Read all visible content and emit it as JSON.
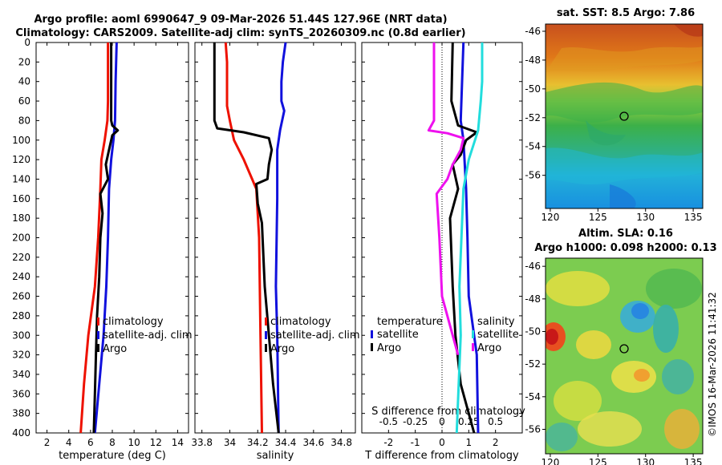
{
  "header": {
    "title_line1": "Argo profile: aoml 6990647_9 09-Mar-2026 51.44S 127.96E (NRT data)",
    "title_line2": "Climatology: CARS2009. Satellite-adj clim: synTS_20260309.nc (0.8d earlier)"
  },
  "side": {
    "sst_title": "sat. SST: 8.5 Argo: 7.86",
    "sla_title1": "Altim. SLA: 0.16",
    "sla_title2": "Argo h1000: 0.098 h2000: 0.13",
    "watermark": "©IMOS 16-Mar-2026 11:41:32"
  },
  "colors": {
    "climatology": "#ee1100",
    "satellite": "#1111dd",
    "argo": "#000000",
    "sal_diff": "#22dddd",
    "temp_diff": "#ee11ee"
  },
  "chart_data": [
    {
      "type": "line",
      "name": "temperature",
      "xlabel": "temperature (deg C)",
      "ylabel": "",
      "xlim": [
        1,
        15
      ],
      "ylim": [
        400,
        0
      ],
      "xticks": [
        "2",
        "4",
        "6",
        "8",
        "10",
        "12",
        "14"
      ],
      "xtick_values": [
        2,
        4,
        6,
        8,
        10,
        12,
        14
      ],
      "yticks": [
        "0",
        "20",
        "40",
        "60",
        "80",
        "100",
        "120",
        "140",
        "160",
        "180",
        "200",
        "220",
        "240",
        "260",
        "280",
        "300",
        "320",
        "340",
        "360",
        "380",
        "400"
      ],
      "ytick_values": [
        0,
        20,
        40,
        60,
        80,
        100,
        120,
        140,
        160,
        180,
        200,
        220,
        240,
        260,
        280,
        300,
        320,
        340,
        360,
        380,
        400
      ],
      "legend": [
        "climatology",
        "satellite-adj. clim",
        "Argo"
      ],
      "series": [
        {
          "name": "climatology",
          "color_key": "climatology",
          "points": [
            [
              7.6,
              0
            ],
            [
              7.6,
              60
            ],
            [
              7.55,
              80
            ],
            [
              7.3,
              100
            ],
            [
              7.0,
              120
            ],
            [
              6.9,
              150
            ],
            [
              6.7,
              200
            ],
            [
              6.4,
              250
            ],
            [
              5.8,
              300
            ],
            [
              5.4,
              350
            ],
            [
              5.1,
              400
            ]
          ]
        },
        {
          "name": "satellite-adj. clim",
          "color_key": "satellite",
          "points": [
            [
              8.4,
              0
            ],
            [
              8.3,
              40
            ],
            [
              8.25,
              80
            ],
            [
              8.1,
              100
            ],
            [
              7.9,
              120
            ],
            [
              7.7,
              150
            ],
            [
              7.6,
              200
            ],
            [
              7.45,
              250
            ],
            [
              7.2,
              300
            ],
            [
              6.8,
              350
            ],
            [
              6.4,
              400
            ]
          ]
        },
        {
          "name": "Argo",
          "color_key": "argo",
          "points": [
            [
              7.9,
              0
            ],
            [
              7.9,
              80
            ],
            [
              8.0,
              85
            ],
            [
              8.5,
              90
            ],
            [
              8.0,
              95
            ],
            [
              7.7,
              110
            ],
            [
              7.4,
              125
            ],
            [
              7.6,
              140
            ],
            [
              6.9,
              155
            ],
            [
              7.1,
              175
            ],
            [
              6.9,
              200
            ],
            [
              6.8,
              240
            ],
            [
              6.6,
              280
            ],
            [
              6.5,
              320
            ],
            [
              6.4,
              360
            ],
            [
              6.3,
              400
            ]
          ]
        }
      ]
    },
    {
      "type": "line",
      "name": "salinity",
      "xlabel": "salinity",
      "ylabel": "",
      "xlim": [
        33.75,
        34.9
      ],
      "ylim": [
        400,
        0
      ],
      "xticks": [
        "33.8",
        "34",
        "34.2",
        "34.4",
        "34.6",
        "34.8"
      ],
      "xtick_values": [
        33.8,
        34.0,
        34.2,
        34.4,
        34.6,
        34.8
      ],
      "legend": [
        "climatology",
        "satellite-adj. clim",
        "Argo"
      ],
      "series": [
        {
          "name": "climatology",
          "color_key": "climatology",
          "points": [
            [
              33.97,
              0
            ],
            [
              33.98,
              20
            ],
            [
              33.98,
              50
            ],
            [
              33.98,
              65
            ],
            [
              34.0,
              80
            ],
            [
              34.03,
              100
            ],
            [
              34.1,
              120
            ],
            [
              34.16,
              140
            ],
            [
              34.19,
              150
            ],
            [
              34.21,
              200
            ],
            [
              34.22,
              300
            ],
            [
              34.23,
              400
            ]
          ]
        },
        {
          "name": "satellite-adj. clim",
          "color_key": "satellite",
          "points": [
            [
              34.4,
              0
            ],
            [
              34.38,
              20
            ],
            [
              34.37,
              40
            ],
            [
              34.37,
              60
            ],
            [
              34.39,
              70
            ],
            [
              34.36,
              90
            ],
            [
              34.34,
              110
            ],
            [
              34.34,
              160
            ],
            [
              34.33,
              250
            ],
            [
              34.34,
              300
            ],
            [
              34.35,
              400
            ]
          ]
        },
        {
          "name": "Argo",
          "color_key": "argo",
          "points": [
            [
              33.89,
              0
            ],
            [
              33.89,
              80
            ],
            [
              33.91,
              88
            ],
            [
              34.1,
              92
            ],
            [
              34.28,
              98
            ],
            [
              34.3,
              110
            ],
            [
              34.28,
              125
            ],
            [
              34.27,
              140
            ],
            [
              34.19,
              145
            ],
            [
              34.2,
              165
            ],
            [
              34.23,
              185
            ],
            [
              34.25,
              250
            ],
            [
              34.28,
              300
            ],
            [
              34.31,
              350
            ],
            [
              34.35,
              400
            ]
          ]
        }
      ]
    },
    {
      "type": "line",
      "name": "T difference",
      "xlabel": "T difference from climatology",
      "top_xlabel": "S difference from climatology",
      "xlim": [
        -3,
        3
      ],
      "ylim": [
        400,
        0
      ],
      "xticks": [
        "-2",
        "-1",
        "0",
        "1",
        "2"
      ],
      "xtick_values": [
        -2,
        -1,
        0,
        1,
        2
      ],
      "top_ticks": [
        "-0.5",
        "-0.25",
        "0",
        "0.25",
        "0.5"
      ],
      "top_tick_values": [
        -0.5,
        -0.25,
        0,
        0.25,
        0.5
      ],
      "legend_left_title": "temperature",
      "legend_right_title": "salinity",
      "legend_left": [
        "satellite",
        "Argo"
      ],
      "legend_right": [
        "satellite",
        "Argo"
      ],
      "series": [
        {
          "name": "T satellite",
          "color_key": "satellite",
          "points": [
            [
              0.8,
              0
            ],
            [
              0.7,
              80
            ],
            [
              0.8,
              100
            ],
            [
              0.9,
              150
            ],
            [
              0.95,
              200
            ],
            [
              1.0,
              260
            ],
            [
              1.3,
              320
            ],
            [
              1.35,
              400
            ]
          ]
        },
        {
          "name": "T Argo",
          "color_key": "argo",
          "points": [
            [
              0.4,
              0
            ],
            [
              0.35,
              60
            ],
            [
              0.6,
              85
            ],
            [
              1.3,
              92
            ],
            [
              0.9,
              100
            ],
            [
              0.7,
              115
            ],
            [
              0.4,
              125
            ],
            [
              0.6,
              150
            ],
            [
              0.3,
              180
            ],
            [
              0.4,
              250
            ],
            [
              0.5,
              300
            ],
            [
              0.7,
              350
            ],
            [
              1.2,
              400
            ]
          ]
        },
        {
          "name": "S satellite",
          "color_key": "sal_diff",
          "points": [
            [
              1.5,
              0
            ],
            [
              1.5,
              40
            ],
            [
              1.45,
              60
            ],
            [
              1.35,
              90
            ],
            [
              1.0,
              120
            ],
            [
              0.8,
              150
            ],
            [
              0.65,
              250
            ],
            [
              0.7,
              300
            ],
            [
              0.55,
              400
            ]
          ]
        },
        {
          "name": "S Argo",
          "color_key": "temp_diff",
          "points": [
            [
              -0.3,
              0
            ],
            [
              -0.3,
              80
            ],
            [
              -0.5,
              90
            ],
            [
              0.2,
              93
            ],
            [
              0.8,
              98
            ],
            [
              0.7,
              110
            ],
            [
              0.4,
              125
            ],
            [
              0.2,
              140
            ],
            [
              -0.2,
              155
            ],
            [
              -0.1,
              200
            ],
            [
              -0.0,
              260
            ],
            [
              0.4,
              300
            ],
            [
              0.6,
              320
            ]
          ]
        }
      ]
    },
    {
      "type": "heatmap",
      "name": "satellite SST map",
      "xticks": [
        "120",
        "125",
        "130",
        "135"
      ],
      "xtick_values": [
        120,
        125,
        130,
        135
      ],
      "yticks": [
        "-46",
        "-48",
        "-50",
        "-52",
        "-54",
        "-56"
      ],
      "ytick_values": [
        -46,
        -48,
        -50,
        -52,
        -54,
        -56
      ],
      "xlim": [
        119.5,
        136
      ],
      "ylim": [
        -45.5,
        -58.3
      ],
      "marker": [
        127.96,
        -51.44
      ]
    },
    {
      "type": "heatmap",
      "name": "altimetry SLA map",
      "xticks": [
        "120",
        "125",
        "130",
        "135"
      ],
      "xtick_values": [
        120,
        125,
        130,
        135
      ],
      "yticks": [
        "-46",
        "-48",
        "-50",
        "-52",
        "-54",
        "-56"
      ],
      "ytick_values": [
        -46,
        -48,
        -50,
        -52,
        -54,
        -56
      ],
      "xlim": [
        119.5,
        136
      ],
      "ylim": [
        -45.5,
        -57.5
      ],
      "marker": [
        127.96,
        -51.44
      ]
    }
  ]
}
